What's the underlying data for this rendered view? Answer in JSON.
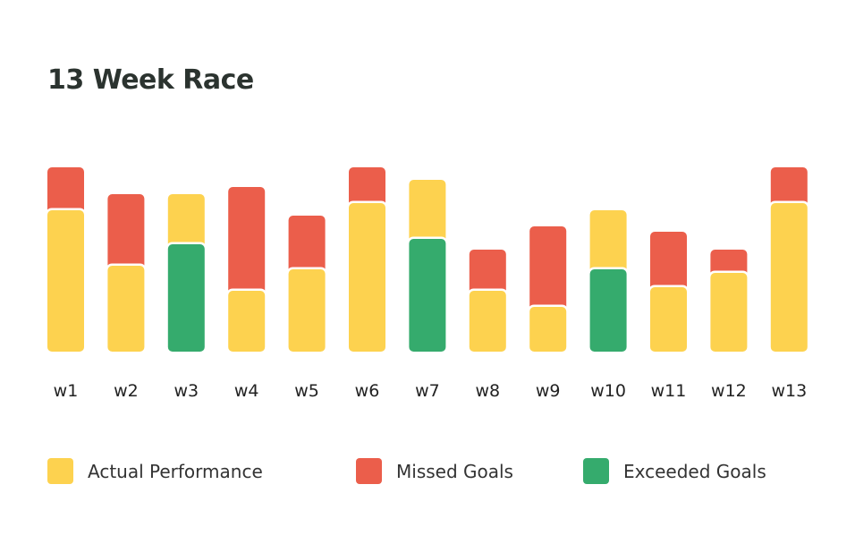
{
  "chart_data": {
    "type": "bar",
    "title": "13 Week Race",
    "xlabel": "",
    "ylabel": "",
    "ylim": [
      0,
      103
    ],
    "grid": false,
    "categories": [
      "w1",
      "w2",
      "w3",
      "w4",
      "w5",
      "w6",
      "w7",
      "w8",
      "w9",
      "w10",
      "w11",
      "w12",
      "w13"
    ],
    "series": [
      {
        "name": "Actual Performance",
        "values": [
          79,
          48,
          88,
          34,
          46,
          83,
          96,
          34,
          25,
          79,
          36,
          44,
          83
        ]
      },
      {
        "name": "Goal",
        "values": [
          103,
          88,
          60,
          92,
          76,
          103,
          63,
          57,
          70,
          46,
          67,
          57,
          103
        ]
      }
    ],
    "legend": [
      {
        "label": "Actual Performance",
        "color": "#fdd24f"
      },
      {
        "label": "Missed Goals",
        "color": "#eb5e4b"
      },
      {
        "label": "Exceeded Goals",
        "color": "#35ab6d"
      }
    ],
    "legend_position": "bottom"
  }
}
